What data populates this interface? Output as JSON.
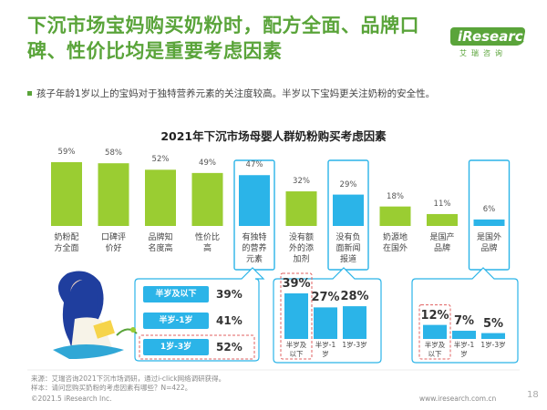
{
  "header": {
    "headline": "下沉市场宝妈购买奶粉时，配方全面、品牌口碑、性价比均是重要考虑因素",
    "subhead": "孩子年龄1岁以上的宝妈对于独特营养元素的关注度较高。半岁以下宝妈更关注奶粉的安全性。"
  },
  "logo": {
    "text": "iResearch",
    "cn": "艾瑞咨询"
  },
  "chart_data": [
    {
      "type": "bar",
      "title": "2021年下沉市场母婴人群奶粉购买考虑因素",
      "categories": [
        "奶粉配方全面",
        "口碑评价好",
        "品牌知名度高",
        "性价比高",
        "有独特的营养元素",
        "没有额外的添加剂",
        "没有负面新闻报道",
        "奶源地在国外",
        "是国产品牌",
        "是国外品牌"
      ],
      "category_lines": [
        [
          "奶粉配",
          "方全面"
        ],
        [
          "口碑评",
          "价好"
        ],
        [
          "品牌知",
          "名度高"
        ],
        [
          "性价比",
          "高"
        ],
        [
          "有独特",
          "的营养",
          "元素"
        ],
        [
          "没有额",
          "外的添",
          "加剂"
        ],
        [
          "没有负",
          "面新闻",
          "报道"
        ],
        [
          "奶源地",
          "在国外"
        ],
        [
          "是国产",
          "品牌"
        ],
        [
          "是国外",
          "品牌"
        ]
      ],
      "values": [
        59,
        58,
        52,
        49,
        47,
        32,
        29,
        18,
        11,
        6
      ],
      "value_labels": [
        "59%",
        "58%",
        "52%",
        "49%",
        "47%",
        "32%",
        "29%",
        "18%",
        "11%",
        "6%"
      ],
      "highlighted": [
        4,
        6,
        9
      ],
      "colors": {
        "green": "#9acd32",
        "blue": "#2bb4e8",
        "box": "#2bb4e8"
      },
      "ylim": [
        0,
        65
      ]
    },
    {
      "type": "table",
      "subject": "有独特的营养元素",
      "categories": [
        "半岁及以下",
        "半岁-1岁",
        "1岁-3岁"
      ],
      "values": [
        39,
        41,
        52
      ],
      "value_labels": [
        "39%",
        "41%",
        "52%"
      ],
      "highlighted": [
        2
      ]
    },
    {
      "type": "bar",
      "subject": "没有负面新闻报道",
      "categories": [
        "半岁及以下",
        "半岁-1岁",
        "1岁-3岁"
      ],
      "category_lines": [
        [
          "半岁及",
          "以下"
        ],
        [
          "半岁-1",
          "岁"
        ],
        [
          "1岁-3岁"
        ]
      ],
      "values": [
        39,
        27,
        28
      ],
      "value_labels": [
        "39%",
        "27%",
        "28%"
      ],
      "highlighted": [
        0
      ],
      "ylim": [
        0,
        45
      ]
    },
    {
      "type": "bar",
      "subject": "是国外品牌",
      "categories": [
        "半岁及以下",
        "半岁-1岁",
        "1岁-3岁"
      ],
      "category_lines": [
        [
          "半岁及",
          "以下"
        ],
        [
          "半岁-1",
          "岁"
        ],
        [
          "1岁-3岁"
        ]
      ],
      "values": [
        12,
        7,
        5
      ],
      "value_labels": [
        "12%",
        "7%",
        "5%"
      ],
      "highlighted": [
        0
      ],
      "ylim": [
        0,
        45
      ]
    }
  ],
  "footer": {
    "source_1": "来源：艾瑞咨询2021下沉市场调研，通过i-click网络调研获得。",
    "source_2": "样本：请问您购买奶粉的考虑因素有哪些？N=422。",
    "copyright": "©2021.5 iResearch Inc.",
    "url": "www.iresearch.com.cn",
    "page": "18"
  }
}
